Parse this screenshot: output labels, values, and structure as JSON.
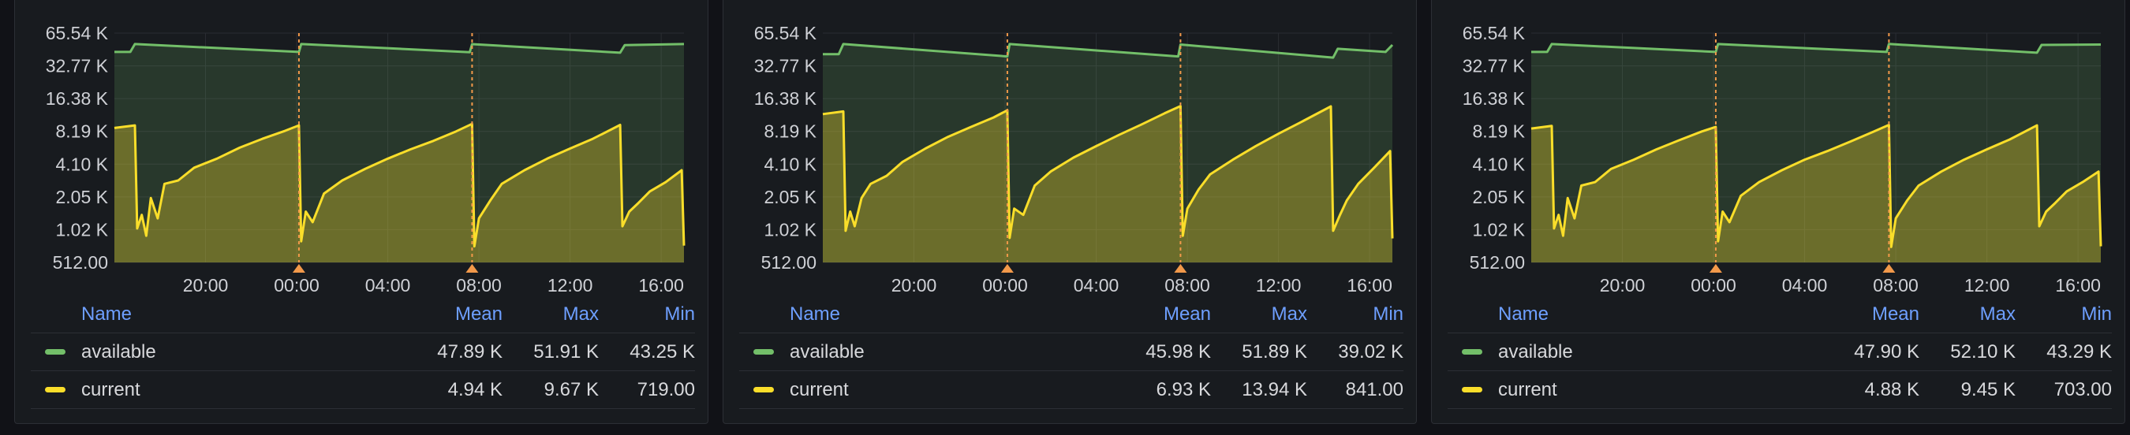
{
  "legend_headers": {
    "name": "Name",
    "mean": "Mean",
    "max": "Max",
    "min": "Min"
  },
  "colors": {
    "available": "#73bf69",
    "current": "#fade2a",
    "annotation": "#f2994a"
  },
  "panels": [
    {
      "legend": [
        {
          "name": "available",
          "color_key": "available",
          "mean": "47.89 K",
          "max": "51.91 K",
          "min": "43.25 K"
        },
        {
          "name": "current",
          "color_key": "current",
          "mean": "4.94 K",
          "max": "9.67 K",
          "min": "719.00"
        }
      ]
    },
    {
      "legend": [
        {
          "name": "available",
          "color_key": "available",
          "mean": "45.98 K",
          "max": "51.89 K",
          "min": "39.02 K"
        },
        {
          "name": "current",
          "color_key": "current",
          "mean": "6.93 K",
          "max": "13.94 K",
          "min": "841.00"
        }
      ]
    },
    {
      "legend": [
        {
          "name": "available",
          "color_key": "available",
          "mean": "47.90 K",
          "max": "52.10 K",
          "min": "43.29 K"
        },
        {
          "name": "current",
          "color_key": "current",
          "mean": "4.88 K",
          "max": "9.45 K",
          "min": "703.00"
        }
      ]
    }
  ],
  "chart_data": [
    {
      "type": "area",
      "y_scale": "log2",
      "ylim": [
        512,
        65536
      ],
      "y_ticks": [
        "65.54 K",
        "32.77 K",
        "16.38 K",
        "8.19 K",
        "4.10 K",
        "2.05 K",
        "1.02 K",
        "512.00"
      ],
      "x_ticks": [
        "20:00",
        "00:00",
        "04:00",
        "08:00",
        "12:00",
        "16:00"
      ],
      "x_tick_hours": [
        20,
        24,
        28,
        32,
        36,
        40
      ],
      "x_range_hours": [
        16.0,
        41.0
      ],
      "annotations_hours": [
        24.1,
        31.7
      ],
      "series": [
        {
          "name": "available",
          "points": [
            [
              16.0,
              44000
            ],
            [
              16.7,
              44000
            ],
            [
              16.9,
              52000
            ],
            [
              24.1,
              44000
            ],
            [
              24.2,
              52000
            ],
            [
              31.6,
              43800
            ],
            [
              31.7,
              51900
            ],
            [
              38.2,
              43300
            ],
            [
              38.4,
              50800
            ],
            [
              41.0,
              52000
            ]
          ]
        },
        {
          "name": "current",
          "points": [
            [
              16.0,
              8800
            ],
            [
              16.9,
              9300
            ],
            [
              17.0,
              1050
            ],
            [
              17.2,
              1400
            ],
            [
              17.4,
              900
            ],
            [
              17.6,
              2000
            ],
            [
              17.9,
              1300
            ],
            [
              18.2,
              2700
            ],
            [
              18.8,
              2900
            ],
            [
              19.5,
              3800
            ],
            [
              20.5,
              4600
            ],
            [
              21.5,
              5800
            ],
            [
              22.5,
              7000
            ],
            [
              23.5,
              8300
            ],
            [
              24.1,
              9300
            ],
            [
              24.2,
              800
            ],
            [
              24.4,
              1500
            ],
            [
              24.7,
              1200
            ],
            [
              25.2,
              2200
            ],
            [
              26.0,
              2900
            ],
            [
              27.0,
              3700
            ],
            [
              28.0,
              4600
            ],
            [
              29.0,
              5600
            ],
            [
              30.0,
              6700
            ],
            [
              31.0,
              8200
            ],
            [
              31.7,
              9600
            ],
            [
              31.8,
              720
            ],
            [
              32.0,
              1300
            ],
            [
              32.5,
              1900
            ],
            [
              33.0,
              2700
            ],
            [
              34.0,
              3600
            ],
            [
              35.0,
              4600
            ],
            [
              36.0,
              5700
            ],
            [
              37.0,
              7000
            ],
            [
              38.2,
              9400
            ],
            [
              38.3,
              1100
            ],
            [
              38.6,
              1500
            ],
            [
              39.0,
              1800
            ],
            [
              39.5,
              2300
            ],
            [
              40.2,
              2800
            ],
            [
              40.9,
              3600
            ],
            [
              41.0,
              730
            ]
          ]
        }
      ]
    },
    {
      "type": "area",
      "y_scale": "log2",
      "ylim": [
        512,
        65536
      ],
      "y_ticks": [
        "65.54 K",
        "32.77 K",
        "16.38 K",
        "8.19 K",
        "4.10 K",
        "2.05 K",
        "1.02 K",
        "512.00"
      ],
      "x_ticks": [
        "20:00",
        "00:00",
        "04:00",
        "08:00",
        "12:00",
        "16:00"
      ],
      "x_tick_hours": [
        20,
        24,
        28,
        32,
        36,
        40
      ],
      "x_range_hours": [
        16.0,
        41.0
      ],
      "annotations_hours": [
        24.1,
        31.7
      ],
      "series": [
        {
          "name": "available",
          "points": [
            [
              16.0,
              42000
            ],
            [
              16.7,
              42000
            ],
            [
              16.9,
              52000
            ],
            [
              24.1,
              40000
            ],
            [
              24.2,
              52000
            ],
            [
              31.6,
              40000
            ],
            [
              31.7,
              51500
            ],
            [
              38.4,
              39000
            ],
            [
              38.6,
              47000
            ],
            [
              40.7,
              44000
            ],
            [
              41.0,
              51000
            ]
          ]
        },
        {
          "name": "current",
          "points": [
            [
              16.0,
              11800
            ],
            [
              16.9,
              12500
            ],
            [
              17.0,
              1000
            ],
            [
              17.2,
              1500
            ],
            [
              17.4,
              1100
            ],
            [
              17.7,
              2000
            ],
            [
              18.1,
              2700
            ],
            [
              18.8,
              3200
            ],
            [
              19.5,
              4300
            ],
            [
              20.5,
              5700
            ],
            [
              21.5,
              7300
            ],
            [
              22.5,
              9000
            ],
            [
              23.5,
              11000
            ],
            [
              24.1,
              12800
            ],
            [
              24.2,
              860
            ],
            [
              24.4,
              1600
            ],
            [
              24.8,
              1400
            ],
            [
              25.3,
              2600
            ],
            [
              26.0,
              3500
            ],
            [
              27.0,
              4700
            ],
            [
              28.0,
              6000
            ],
            [
              29.0,
              7600
            ],
            [
              30.0,
              9500
            ],
            [
              31.0,
              12000
            ],
            [
              31.7,
              14000
            ],
            [
              31.8,
              900
            ],
            [
              32.0,
              1600
            ],
            [
              32.5,
              2400
            ],
            [
              33.0,
              3300
            ],
            [
              34.0,
              4500
            ],
            [
              35.0,
              6000
            ],
            [
              36.0,
              7800
            ],
            [
              37.0,
              10000
            ],
            [
              38.3,
              13900
            ],
            [
              38.4,
              1000
            ],
            [
              38.7,
              1400
            ],
            [
              39.0,
              1900
            ],
            [
              39.5,
              2700
            ],
            [
              40.2,
              3800
            ],
            [
              40.9,
              5400
            ],
            [
              41.0,
              850
            ]
          ]
        }
      ]
    },
    {
      "type": "area",
      "y_scale": "log2",
      "ylim": [
        512,
        65536
      ],
      "y_ticks": [
        "65.54 K",
        "32.77 K",
        "16.38 K",
        "8.19 K",
        "4.10 K",
        "2.05 K",
        "1.02 K",
        "512.00"
      ],
      "x_ticks": [
        "20:00",
        "00:00",
        "04:00",
        "08:00",
        "12:00",
        "16:00"
      ],
      "x_tick_hours": [
        20,
        24,
        28,
        32,
        36,
        40
      ],
      "x_range_hours": [
        16.0,
        41.0
      ],
      "annotations_hours": [
        24.1,
        31.7
      ],
      "series": [
        {
          "name": "available",
          "points": [
            [
              16.0,
              44000
            ],
            [
              16.7,
              44000
            ],
            [
              16.9,
              52000
            ],
            [
              24.1,
              44000
            ],
            [
              24.2,
              52000
            ],
            [
              31.6,
              44000
            ],
            [
              31.7,
              52100
            ],
            [
              38.2,
              43300
            ],
            [
              38.4,
              51000
            ],
            [
              41.0,
              51500
            ]
          ]
        },
        {
          "name": "current",
          "points": [
            [
              16.0,
              8700
            ],
            [
              16.9,
              9200
            ],
            [
              17.0,
              1050
            ],
            [
              17.2,
              1400
            ],
            [
              17.4,
              900
            ],
            [
              17.6,
              2000
            ],
            [
              17.9,
              1300
            ],
            [
              18.2,
              2600
            ],
            [
              18.8,
              2800
            ],
            [
              19.5,
              3700
            ],
            [
              20.5,
              4500
            ],
            [
              21.5,
              5600
            ],
            [
              22.5,
              6800
            ],
            [
              23.5,
              8200
            ],
            [
              24.1,
              9000
            ],
            [
              24.2,
              800
            ],
            [
              24.4,
              1500
            ],
            [
              24.7,
              1200
            ],
            [
              25.2,
              2100
            ],
            [
              26.0,
              2800
            ],
            [
              27.0,
              3600
            ],
            [
              28.0,
              4500
            ],
            [
              29.0,
              5400
            ],
            [
              30.0,
              6600
            ],
            [
              31.0,
              8100
            ],
            [
              31.7,
              9400
            ],
            [
              31.8,
              710
            ],
            [
              32.0,
              1300
            ],
            [
              32.5,
              1900
            ],
            [
              33.0,
              2600
            ],
            [
              34.0,
              3500
            ],
            [
              35.0,
              4500
            ],
            [
              36.0,
              5600
            ],
            [
              37.0,
              6900
            ],
            [
              38.2,
              9300
            ],
            [
              38.3,
              1100
            ],
            [
              38.6,
              1500
            ],
            [
              39.0,
              1800
            ],
            [
              39.5,
              2300
            ],
            [
              40.2,
              2800
            ],
            [
              40.9,
              3500
            ],
            [
              41.0,
              720
            ]
          ]
        }
      ]
    }
  ]
}
